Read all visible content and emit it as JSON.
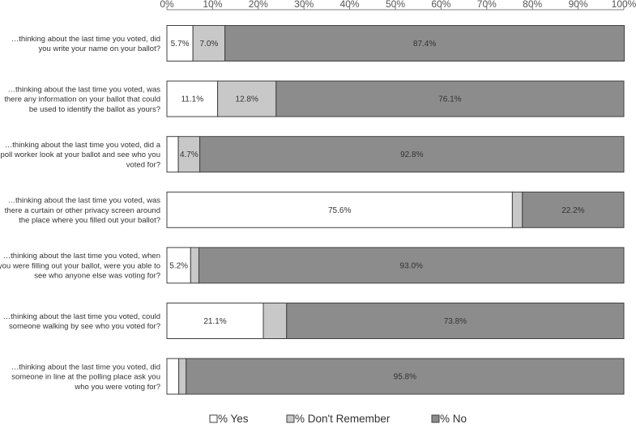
{
  "chart_data": {
    "type": "bar",
    "orientation": "horizontal",
    "stacked": true,
    "title": "",
    "xlabel": "",
    "ylabel": "",
    "xlim": [
      0,
      100
    ],
    "x_ticks": [
      "0%",
      "10%",
      "20%",
      "30%",
      "40%",
      "50%",
      "60%",
      "70%",
      "80%",
      "90%",
      "100%"
    ],
    "grid": false,
    "legend_position": "bottom",
    "categories": [
      [
        "…thinking about the last time you voted, did",
        "you write your name on your ballot?"
      ],
      [
        "…thinking about the last time you voted, was",
        "there any information on your ballot that could",
        "be used to identify the ballot as yours?"
      ],
      [
        "…thinking about the last time you voted, did a",
        "poll worker look at your ballot and see who you",
        "voted for?"
      ],
      [
        "…thinking about the last time you voted, was",
        "there a curtain or other privacy screen around",
        "the place where you filled out your ballot?"
      ],
      [
        "…thinking about the last time you voted, when",
        "you were filling out your ballot, were you able to",
        "see who anyone else was voting for?"
      ],
      [
        "…thinking about the last time you voted, could",
        "someone walking by see who you voted for?"
      ],
      [
        "…thinking about the last time you voted, did",
        "someone in line at the polling place ask you",
        "who you were voting for?"
      ]
    ],
    "series": [
      {
        "name": "% Yes",
        "color": "#ffffff",
        "values": [
          5.7,
          11.1,
          2.5,
          75.6,
          5.2,
          21.1,
          2.6
        ],
        "labels": [
          "5.7%",
          "11.1%",
          "",
          "75.6%",
          "5.2%",
          "21.1%",
          ""
        ]
      },
      {
        "name": "% Don't Remember",
        "color": "#c8c8c8",
        "values": [
          7.0,
          12.8,
          4.7,
          2.2,
          1.8,
          5.1,
          1.6
        ],
        "labels": [
          "7.0%",
          "12.8%",
          "4.7%",
          "",
          "",
          "",
          ""
        ]
      },
      {
        "name": "% No",
        "color": "#8c8c8c",
        "values": [
          87.4,
          76.1,
          92.8,
          22.2,
          93.0,
          73.8,
          95.8
        ],
        "labels": [
          "87.4%",
          "76.1%",
          "92.8%",
          "22.2%",
          "93.0%",
          "73.8%",
          "95.8%"
        ]
      }
    ]
  }
}
